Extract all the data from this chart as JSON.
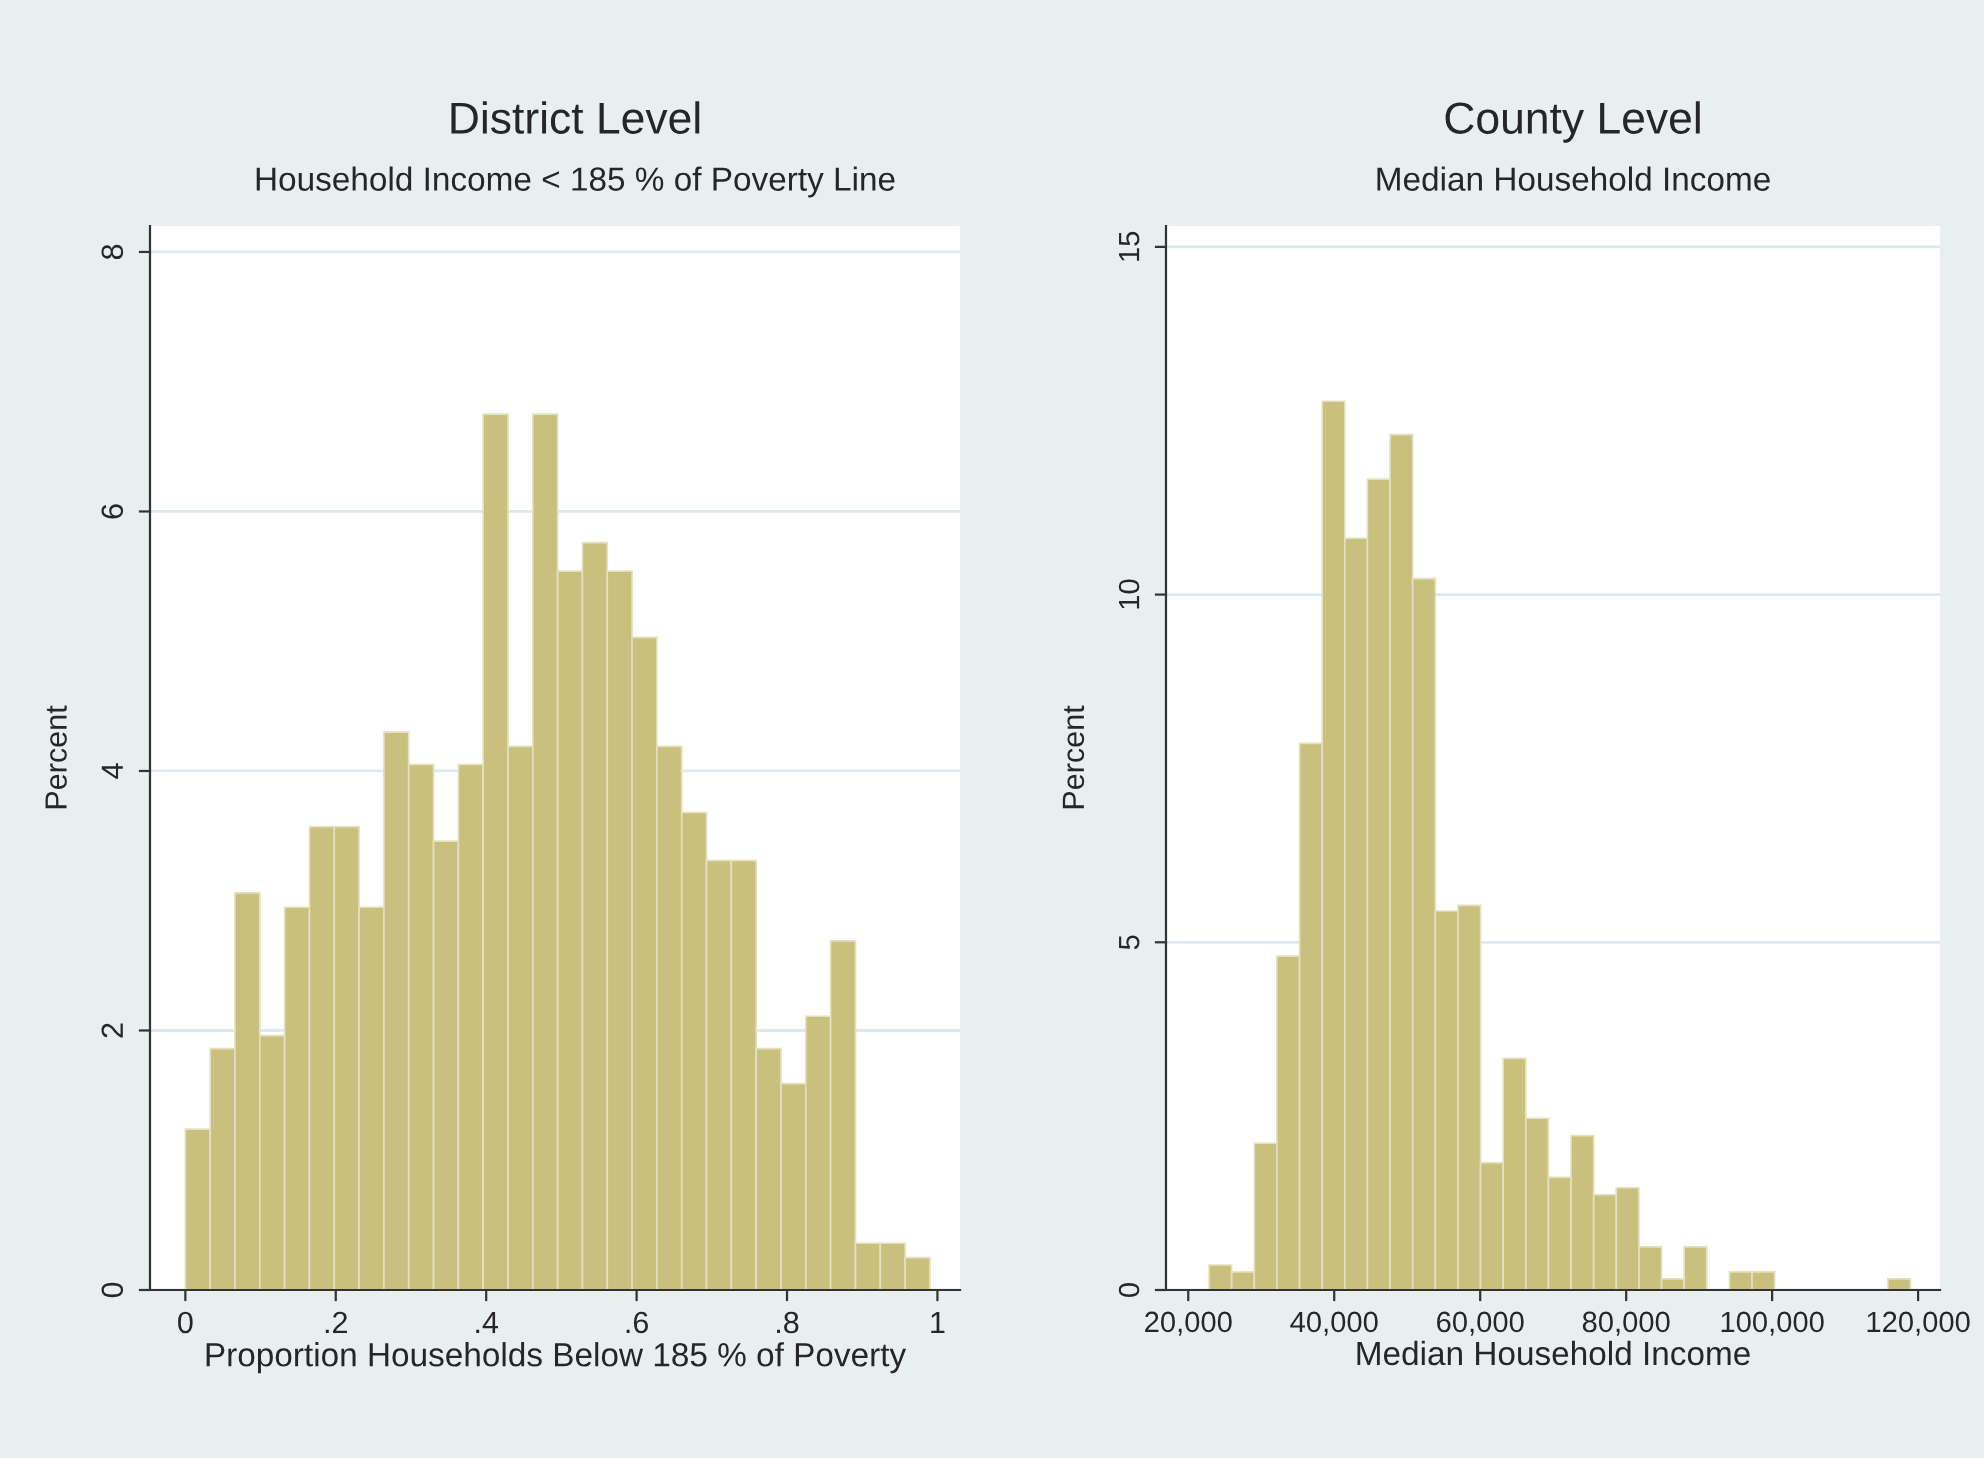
{
  "chart_data": [
    {
      "type": "histogram",
      "title": "District Level",
      "subtitle": "Household Income < 185 % of Poverty Line",
      "xlabel": "Proportion Households Below 185 % of Poverty",
      "ylabel": "Percent",
      "color": "#c8c07c",
      "bins": [
        0,
        0.033,
        0.066,
        0.099,
        0.132,
        0.165,
        0.198,
        0.231,
        0.264,
        0.297,
        0.33,
        0.363,
        0.396,
        0.429,
        0.462,
        0.495,
        0.528,
        0.561,
        0.594,
        0.627,
        0.66,
        0.693,
        0.726,
        0.759,
        0.792,
        0.825,
        0.858,
        0.891,
        0.924,
        0.957,
        0.99
      ],
      "values": [
        1.24,
        1.86,
        3.06,
        1.96,
        2.95,
        3.57,
        3.57,
        2.95,
        4.3,
        4.05,
        3.46,
        4.05,
        6.75,
        4.19,
        6.75,
        5.54,
        5.76,
        5.54,
        5.03,
        4.19,
        3.68,
        3.31,
        3.31,
        1.86,
        1.59,
        2.11,
        2.69,
        0.36,
        0.36,
        0.25
      ],
      "xlim": [
        -0.047,
        1.03
      ],
      "xticks": [
        0,
        {
          "value": 0.2,
          "label": ".2"
        },
        {
          "value": 0.4,
          "label": ".4"
        },
        {
          "value": 0.6,
          "label": ".6"
        },
        {
          "value": 0.8,
          "label": ".8"
        },
        1
      ],
      "ylim": [
        0,
        8.2
      ],
      "yticks": [
        0,
        2,
        4,
        6,
        8
      ],
      "grid": "y"
    },
    {
      "type": "histogram",
      "title": "County Level",
      "subtitle": "Median Household Income",
      "xlabel": "Median Household Income",
      "ylabel": "Percent",
      "color": "#c8c07c",
      "bins": [
        22850,
        25950,
        29050,
        32150,
        35250,
        38350,
        41450,
        44550,
        47650,
        50750,
        53850,
        56950,
        60050,
        63150,
        66250,
        69350,
        72450,
        75550,
        78650,
        81750,
        84850,
        87950,
        91050,
        94150,
        97250,
        100350,
        103450,
        106550,
        109650,
        112750,
        115850,
        118950
      ],
      "values": [
        0.36,
        0.26,
        2.11,
        4.8,
        7.86,
        12.78,
        10.81,
        11.66,
        12.3,
        10.23,
        5.45,
        5.53,
        1.83,
        3.33,
        2.47,
        1.62,
        2.22,
        1.37,
        1.47,
        0.62,
        0.16,
        0.62,
        0,
        0.26,
        0.26,
        0,
        0,
        0,
        0,
        0,
        0.16
      ],
      "xlim": [
        16950,
        123000
      ],
      "xticks": [
        {
          "value": 20000,
          "label": "20,000"
        },
        {
          "value": 40000,
          "label": "40,000"
        },
        {
          "value": 60000,
          "label": "60,000"
        },
        {
          "value": 80000,
          "label": "80,000"
        },
        {
          "value": 100000,
          "label": "100,000"
        },
        {
          "value": 120000,
          "label": "120,000"
        }
      ],
      "ylim": [
        0,
        15.3
      ],
      "yticks": [
        0,
        5,
        10,
        15
      ],
      "grid": "y"
    }
  ]
}
